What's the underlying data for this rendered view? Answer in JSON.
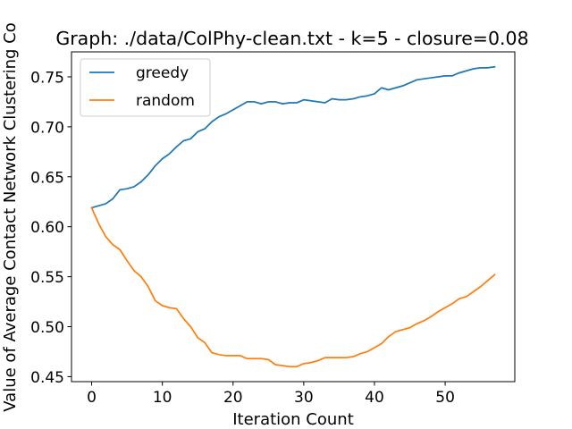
{
  "chart_data": {
    "type": "line",
    "title": "Graph: ./data/ColPhy-clean.txt - k=5 - closure=0.08",
    "xlabel": "Iteration Count",
    "ylabel": "Value of Average Contact Network Clustering Co",
    "xlim": [
      -2.85,
      59.85
    ],
    "ylim": [
      0.445,
      0.775
    ],
    "xticks": [
      0,
      10,
      20,
      30,
      40,
      50
    ],
    "yticks": [
      0.45,
      0.5,
      0.55,
      0.6,
      0.65,
      0.7,
      0.75
    ],
    "ytick_labels": [
      "0.45",
      "0.50",
      "0.55",
      "0.60",
      "0.65",
      "0.70",
      "0.75"
    ],
    "grid": false,
    "legend": "upper-left",
    "x": [
      0,
      1,
      2,
      3,
      4,
      5,
      6,
      7,
      8,
      9,
      10,
      11,
      12,
      13,
      14,
      15,
      16,
      17,
      18,
      19,
      20,
      21,
      22,
      23,
      24,
      25,
      26,
      27,
      28,
      29,
      30,
      31,
      32,
      33,
      34,
      35,
      36,
      37,
      38,
      39,
      40,
      41,
      42,
      43,
      44,
      45,
      46,
      47,
      48,
      49,
      50,
      51,
      52,
      53,
      54,
      55,
      56,
      57
    ],
    "series": [
      {
        "name": "greedy",
        "color": "#1f77b4",
        "values": [
          0.619,
          0.621,
          0.623,
          0.628,
          0.637,
          0.638,
          0.64,
          0.645,
          0.652,
          0.661,
          0.668,
          0.673,
          0.68,
          0.686,
          0.688,
          0.695,
          0.698,
          0.705,
          0.71,
          0.713,
          0.717,
          0.721,
          0.725,
          0.725,
          0.723,
          0.725,
          0.725,
          0.723,
          0.724,
          0.724,
          0.727,
          0.726,
          0.725,
          0.724,
          0.728,
          0.727,
          0.727,
          0.728,
          0.73,
          0.731,
          0.733,
          0.739,
          0.737,
          0.739,
          0.741,
          0.744,
          0.747,
          0.748,
          0.749,
          0.75,
          0.751,
          0.751,
          0.754,
          0.756,
          0.758,
          0.759,
          0.759,
          0.76
        ]
      },
      {
        "name": "random",
        "color": "#ff7f0e",
        "values": [
          0.619,
          0.603,
          0.59,
          0.582,
          0.577,
          0.566,
          0.556,
          0.55,
          0.54,
          0.526,
          0.521,
          0.519,
          0.518,
          0.508,
          0.5,
          0.489,
          0.484,
          0.474,
          0.472,
          0.471,
          0.471,
          0.471,
          0.468,
          0.468,
          0.468,
          0.467,
          0.462,
          0.461,
          0.46,
          0.46,
          0.463,
          0.464,
          0.466,
          0.469,
          0.469,
          0.469,
          0.469,
          0.47,
          0.473,
          0.475,
          0.479,
          0.483,
          0.49,
          0.495,
          0.497,
          0.499,
          0.503,
          0.506,
          0.51,
          0.515,
          0.519,
          0.523,
          0.528,
          0.53,
          0.535,
          0.54,
          0.546,
          0.552
        ]
      }
    ]
  }
}
